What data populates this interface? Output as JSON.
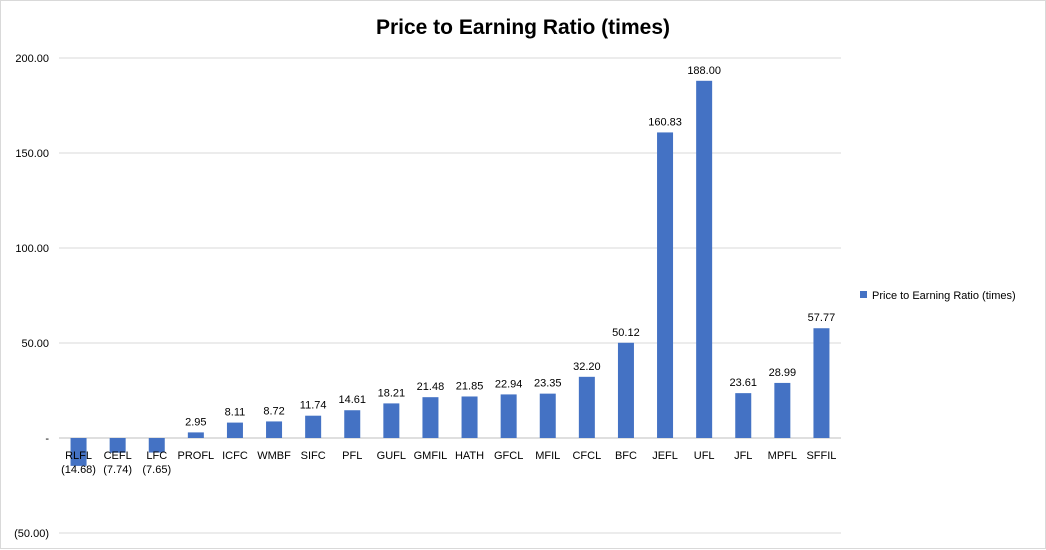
{
  "chart_data": {
    "type": "bar",
    "title": "Price to Earning Ratio (times)",
    "xlabel": "",
    "ylabel": "",
    "ylim": [
      -50,
      200
    ],
    "yticks": [
      "200.00",
      "150.00",
      "100.00",
      "50.00",
      "-",
      "(50.00)"
    ],
    "grid": true,
    "legend_position": "right",
    "bar_color": "#4472C4",
    "categories": [
      "RLFL",
      "CEFL",
      "LFC",
      "PROFL",
      "ICFC",
      "WMBF",
      "SIFC",
      "PFL",
      "GUFL",
      "GMFIL",
      "HATH",
      "GFCL",
      "MFIL",
      "CFCL",
      "BFC",
      "JEFL",
      "UFL",
      "JFL",
      "MPFL",
      "SFFIL"
    ],
    "series": [
      {
        "name": "Price to Earning Ratio (times)",
        "values": [
          -14.68,
          -7.74,
          -7.65,
          2.95,
          8.11,
          8.72,
          11.74,
          14.61,
          18.21,
          21.48,
          21.85,
          22.94,
          23.35,
          32.2,
          50.12,
          160.83,
          188.0,
          23.61,
          28.99,
          57.77
        ],
        "labels": [
          "(14.68)",
          "(7.74)",
          "(7.65)",
          "2.95",
          "8.11",
          "8.72",
          "11.74",
          "14.61",
          "18.21",
          "21.48",
          "21.85",
          "22.94",
          "23.35",
          "32.20",
          "50.12",
          "160.83",
          "188.00",
          "23.61",
          "28.99",
          "57.77"
        ]
      }
    ]
  }
}
